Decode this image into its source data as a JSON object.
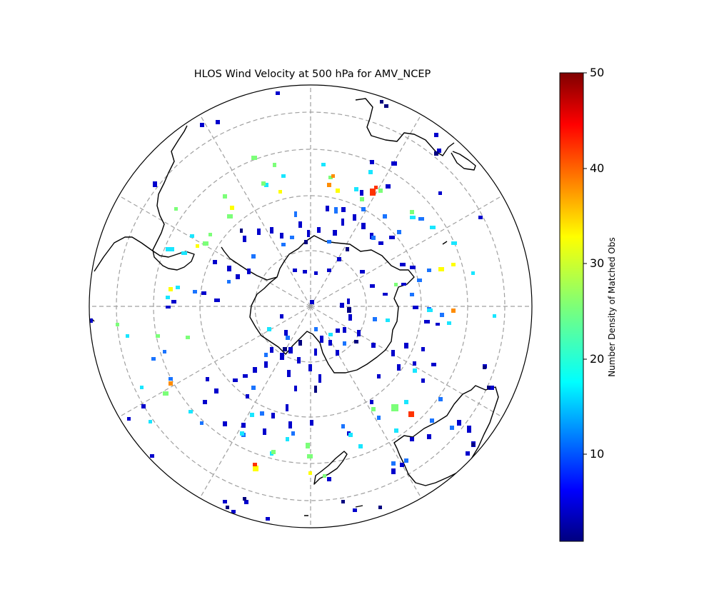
{
  "figure": {
    "title": "HLOS Wind Velocity at 500 hPa for AMV_NCEP"
  },
  "map": {
    "projection": "south-polar-stereographic",
    "graticule": "dashed-grey",
    "meridian_step_deg": 30,
    "parallel_rings": 4,
    "coastlines": [
      "Antarctica",
      "South America",
      "Africa",
      "Australia",
      "New Zealand",
      "Madagascar"
    ]
  },
  "colorbar": {
    "label": "Number Density of Matched Obs",
    "colormap": "jet",
    "min": 1,
    "max": 50,
    "ticks": [
      "10",
      "20",
      "30",
      "40",
      "50"
    ]
  }
}
